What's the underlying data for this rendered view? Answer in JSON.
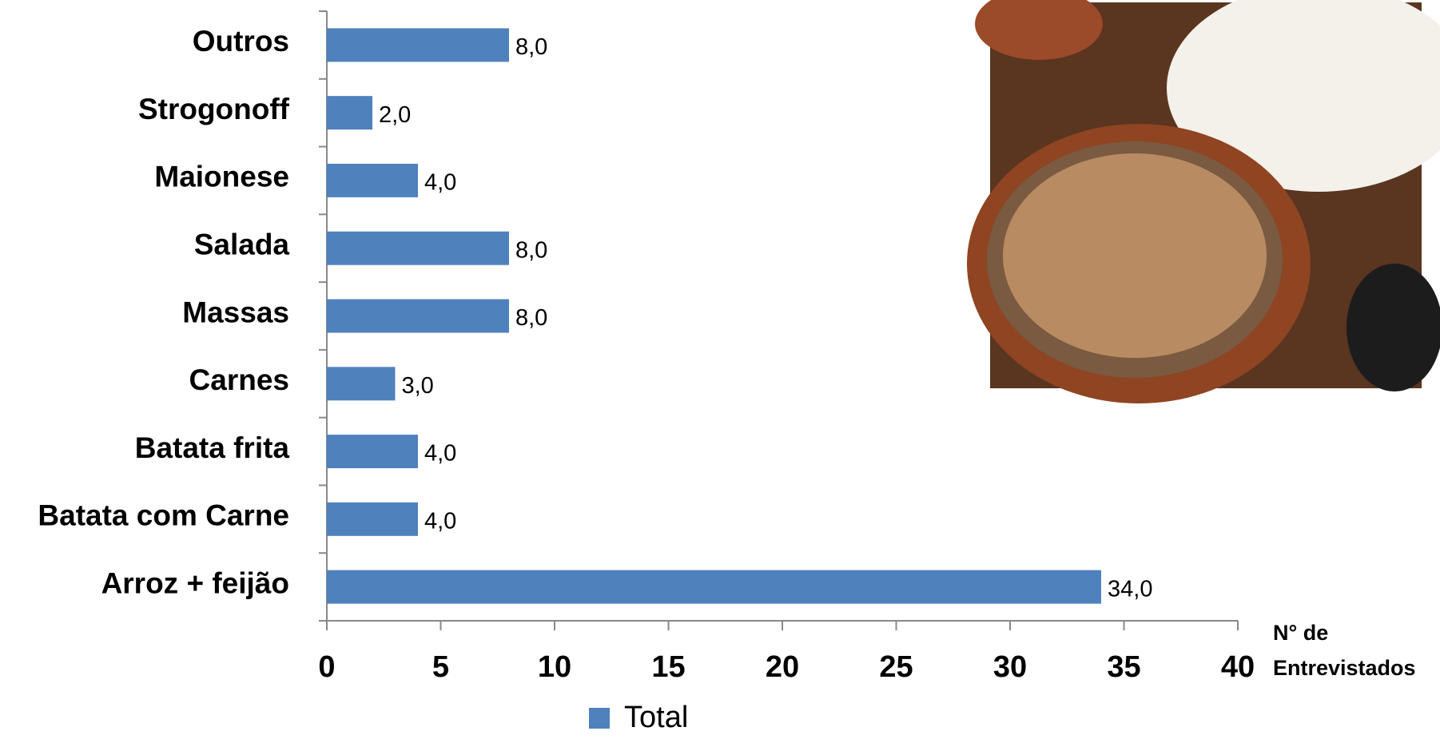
{
  "chart_data": {
    "type": "bar",
    "orientation": "horizontal",
    "categories": [
      "Outros",
      "Strogonoff",
      "Maionese",
      "Salada",
      "Massas",
      "Carnes",
      "Batata frita",
      "Batata com Carne",
      "Arroz + feijão"
    ],
    "series": [
      {
        "name": "Total",
        "color": "#4f81bd",
        "values": [
          8,
          2,
          4,
          8,
          8,
          3,
          4,
          4,
          34
        ],
        "value_labels": [
          "8,0",
          "2,0",
          "4,0",
          "8,0",
          "8,0",
          "3,0",
          "4,0",
          "4,0",
          "34,0"
        ]
      }
    ],
    "xlim": [
      0,
      40
    ],
    "xticks": [
      0,
      5,
      10,
      15,
      20,
      25,
      30,
      35,
      40
    ],
    "xlabel": [
      "N° de",
      "Entrevistados"
    ],
    "legend": "bottom"
  }
}
